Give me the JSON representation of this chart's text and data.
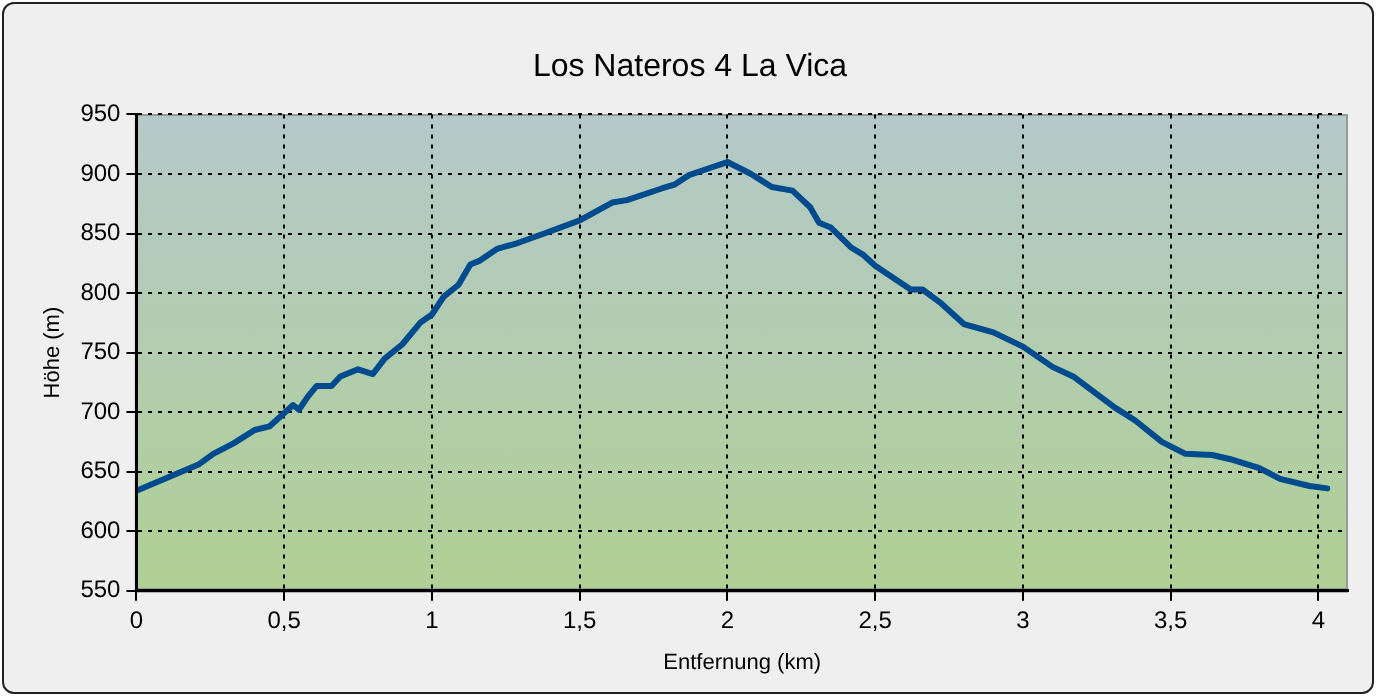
{
  "chart_data": {
    "type": "line",
    "title": "Los Nateros 4 La Vica",
    "xlabel": "Entfernung (km)",
    "ylabel": "Höhe (m)",
    "xlim": [
      0,
      4.1
    ],
    "xticks": [
      0,
      {
        "value": 0.5,
        "label": "0,5"
      },
      1,
      {
        "value": 1.5,
        "label": "1,5"
      },
      2,
      {
        "value": 2.5,
        "label": "2,5"
      },
      3,
      {
        "value": 3.5,
        "label": "3,5"
      },
      4
    ],
    "ylim": [
      550,
      950
    ],
    "yticks": [
      550,
      600,
      650,
      700,
      750,
      800,
      850,
      900,
      950
    ],
    "grid": true,
    "legend": false,
    "marker": "none",
    "line_style": "solid",
    "series": [
      {
        "color": "#004b8d",
        "x": [
          0,
          0.21,
          0.26,
          0.33,
          0.4,
          0.45,
          0.49,
          0.53,
          0.55,
          0.58,
          0.61,
          0.66,
          0.69,
          0.75,
          0.8,
          0.84,
          0.9,
          0.96,
          1,
          1.04,
          1.09,
          1.13,
          1.16,
          1.22,
          1.29,
          1.38,
          1.5,
          1.61,
          1.66,
          1.78,
          1.82,
          1.87,
          1.94,
          2,
          2.08,
          2.15,
          2.22,
          2.28,
          2.31,
          2.35,
          2.42,
          2.46,
          2.5,
          2.62,
          2.66,
          2.72,
          2.8,
          2.9,
          3,
          3.1,
          3.17,
          3.31,
          3.38,
          3.47,
          3.55,
          3.64,
          3.71,
          3.8,
          3.87,
          3.97,
          4.03
        ],
        "values": [
          634,
          656,
          665,
          674,
          685,
          688,
          697,
          706,
          702,
          713,
          722,
          722,
          730,
          736,
          732,
          745,
          757,
          775,
          782,
          797,
          807,
          824,
          827,
          837,
          842,
          850,
          861,
          876,
          878,
          888,
          891,
          899,
          905,
          910,
          900,
          889,
          886,
          872,
          859,
          855,
          838,
          832,
          823,
          803,
          803,
          792,
          774,
          767,
          755,
          738,
          730,
          704,
          693,
          675,
          665,
          664,
          660,
          653,
          644,
          638,
          636
        ]
      }
    ]
  }
}
